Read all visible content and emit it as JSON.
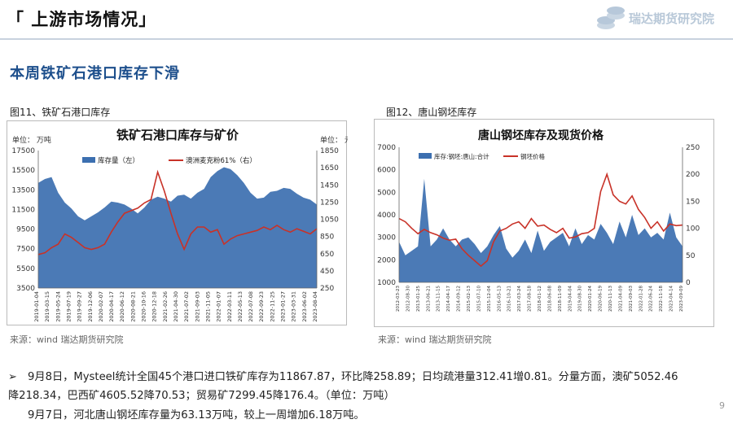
{
  "header": {
    "title": "「 上游市场情况」",
    "logo_text": "瑞达期货研究院"
  },
  "subtitle": "本周铁矿石港口库存下滑",
  "fig11": {
    "caption": "图11、铁矿石港口库存",
    "source": "来源：wind   瑞达期货研究院"
  },
  "fig12": {
    "caption": "图12、唐山钢坯库存",
    "source": "来源：wind   瑞达期货研究院"
  },
  "bullets": {
    "b1_line1": "9月8日，Mysteel统计全国45个港口进口铁矿库存为11867.87，环比降258.89；日均疏港量312.41增0.81。分量方面，澳矿5052.46",
    "b1_line2": "降218.34，巴西矿4605.52降70.53；贸易矿7299.45降176.4。（单位：万吨）",
    "b2": "9月7日，河北唐山钢坯库存量为63.13万吨，较上一周增加6.18万吨。"
  },
  "page_number": "9",
  "chart_data": [
    {
      "type": "area",
      "title": "铁矿石港口库存与矿价",
      "left_unit": "单位：  万吨",
      "right_unit": "单位：  元",
      "ylim_left": [
        3500,
        17500
      ],
      "ylim_right": [
        250,
        1850
      ],
      "yticks_left": [
        "17500",
        "15500",
        "13500",
        "11500",
        "9500",
        "7500",
        "5500",
        "3500"
      ],
      "yticks_right": [
        "1850",
        "1650",
        "1450",
        "1250",
        "1050",
        "850",
        "650",
        "450",
        "250"
      ],
      "xticks": [
        "2019-01-04",
        "2019-03-15",
        "2019-05-24",
        "2019-07-19",
        "2019-09-27",
        "2019-12-06",
        "2020-02-07",
        "2020-04-17",
        "2020-06-12",
        "2020-08-21",
        "2020-10-16",
        "2020-12-18",
        "2021-02-26",
        "2021-04-30",
        "2021-07-02",
        "2021-09-03",
        "2021-11-05",
        "2022-01-07",
        "2022-03-11",
        "2022-05-13",
        "2022-07-08",
        "2022-09-23",
        "2022-11-25",
        "2023-01-27",
        "2023-03-31",
        "2023-06-02",
        "2023-08-04"
      ],
      "series": [
        {
          "name": "库存量（左）",
          "axis": "left",
          "color": "#3c6fb0",
          "values": [
            14200,
            14600,
            14800,
            13200,
            12200,
            11600,
            10800,
            10400,
            10800,
            11200,
            11700,
            12300,
            12200,
            12000,
            11600,
            11100,
            11700,
            12500,
            12800,
            12600,
            12300,
            12900,
            13000,
            12600,
            13200,
            13600,
            14800,
            15400,
            15800,
            15600,
            15000,
            14200,
            13200,
            12600,
            12700,
            13300,
            13400,
            13700,
            13600,
            13100,
            12700,
            12500,
            12000
          ]
        },
        {
          "name": "澳洲麦克粉61%（右）",
          "axis": "right",
          "color": "#c83228",
          "values": [
            640,
            660,
            720,
            760,
            880,
            840,
            780,
            720,
            700,
            720,
            760,
            900,
            1020,
            1120,
            1150,
            1180,
            1240,
            1280,
            1600,
            1380,
            1120,
            880,
            700,
            880,
            960,
            960,
            900,
            930,
            760,
            820,
            860,
            880,
            900,
            920,
            960,
            930,
            980,
            930,
            900,
            940,
            910,
            880,
            940
          ]
        }
      ]
    },
    {
      "type": "area",
      "title": "唐山钢坯库存及现货价格",
      "ylim_left": [
        1000,
        7000
      ],
      "ylim_right": [
        0,
        250
      ],
      "yticks_left": [
        "7000",
        "6000",
        "5000",
        "4000",
        "3000",
        "2000",
        "1000"
      ],
      "yticks_right": [
        "250",
        "200",
        "150",
        "100",
        "50",
        "0"
      ],
      "xticks": [
        "2012-03-23",
        "2012-08-30",
        "2013-01-25",
        "2013-06-21",
        "2013-11-15",
        "2014-04-17",
        "2014-09-12",
        "2015-02-13",
        "2015-07-10",
        "2015-12-04",
        "2016-05-13",
        "2016-10-21",
        "2017-03-24",
        "2017-08-18",
        "2018-01-12",
        "2018-06-08",
        "2018-11-09",
        "2019-04-04",
        "2019-08-30",
        "2020-01-24",
        "2020-06-19",
        "2020-11-13",
        "2021-04-09",
        "2021-09-03",
        "2022-01-28",
        "2022-06-24",
        "2022-11-18",
        "2023-04-14",
        "2023-09-09"
      ],
      "series": [
        {
          "name": "库存:钢坯:唐山:合计",
          "axis": "left",
          "color": "#3c6fb0",
          "values": [
            2800,
            2200,
            2400,
            2600,
            5600,
            2600,
            2900,
            3400,
            2900,
            2600,
            2900,
            3000,
            2700,
            2300,
            2600,
            3100,
            3500,
            2500,
            2100,
            2400,
            2900,
            2300,
            3300,
            2400,
            2800,
            3000,
            3200,
            2600,
            3400,
            2700,
            3100,
            2900,
            3600,
            3200,
            2700,
            3700,
            3000,
            4000,
            3100,
            3400,
            3000,
            3200,
            2900,
            4100,
            3000,
            2600
          ]
        },
        {
          "name": "钢坯价格",
          "axis": "right",
          "color": "#c83228",
          "values": [
            118,
            112,
            100,
            90,
            98,
            92,
            88,
            82,
            78,
            80,
            62,
            50,
            40,
            30,
            40,
            75,
            95,
            100,
            108,
            112,
            100,
            118,
            104,
            106,
            98,
            92,
            100,
            82,
            84,
            90,
            92,
            100,
            168,
            200,
            162,
            150,
            145,
            160,
            135,
            120,
            100,
            112,
            95,
            108,
            105,
            106
          ]
        }
      ]
    }
  ]
}
